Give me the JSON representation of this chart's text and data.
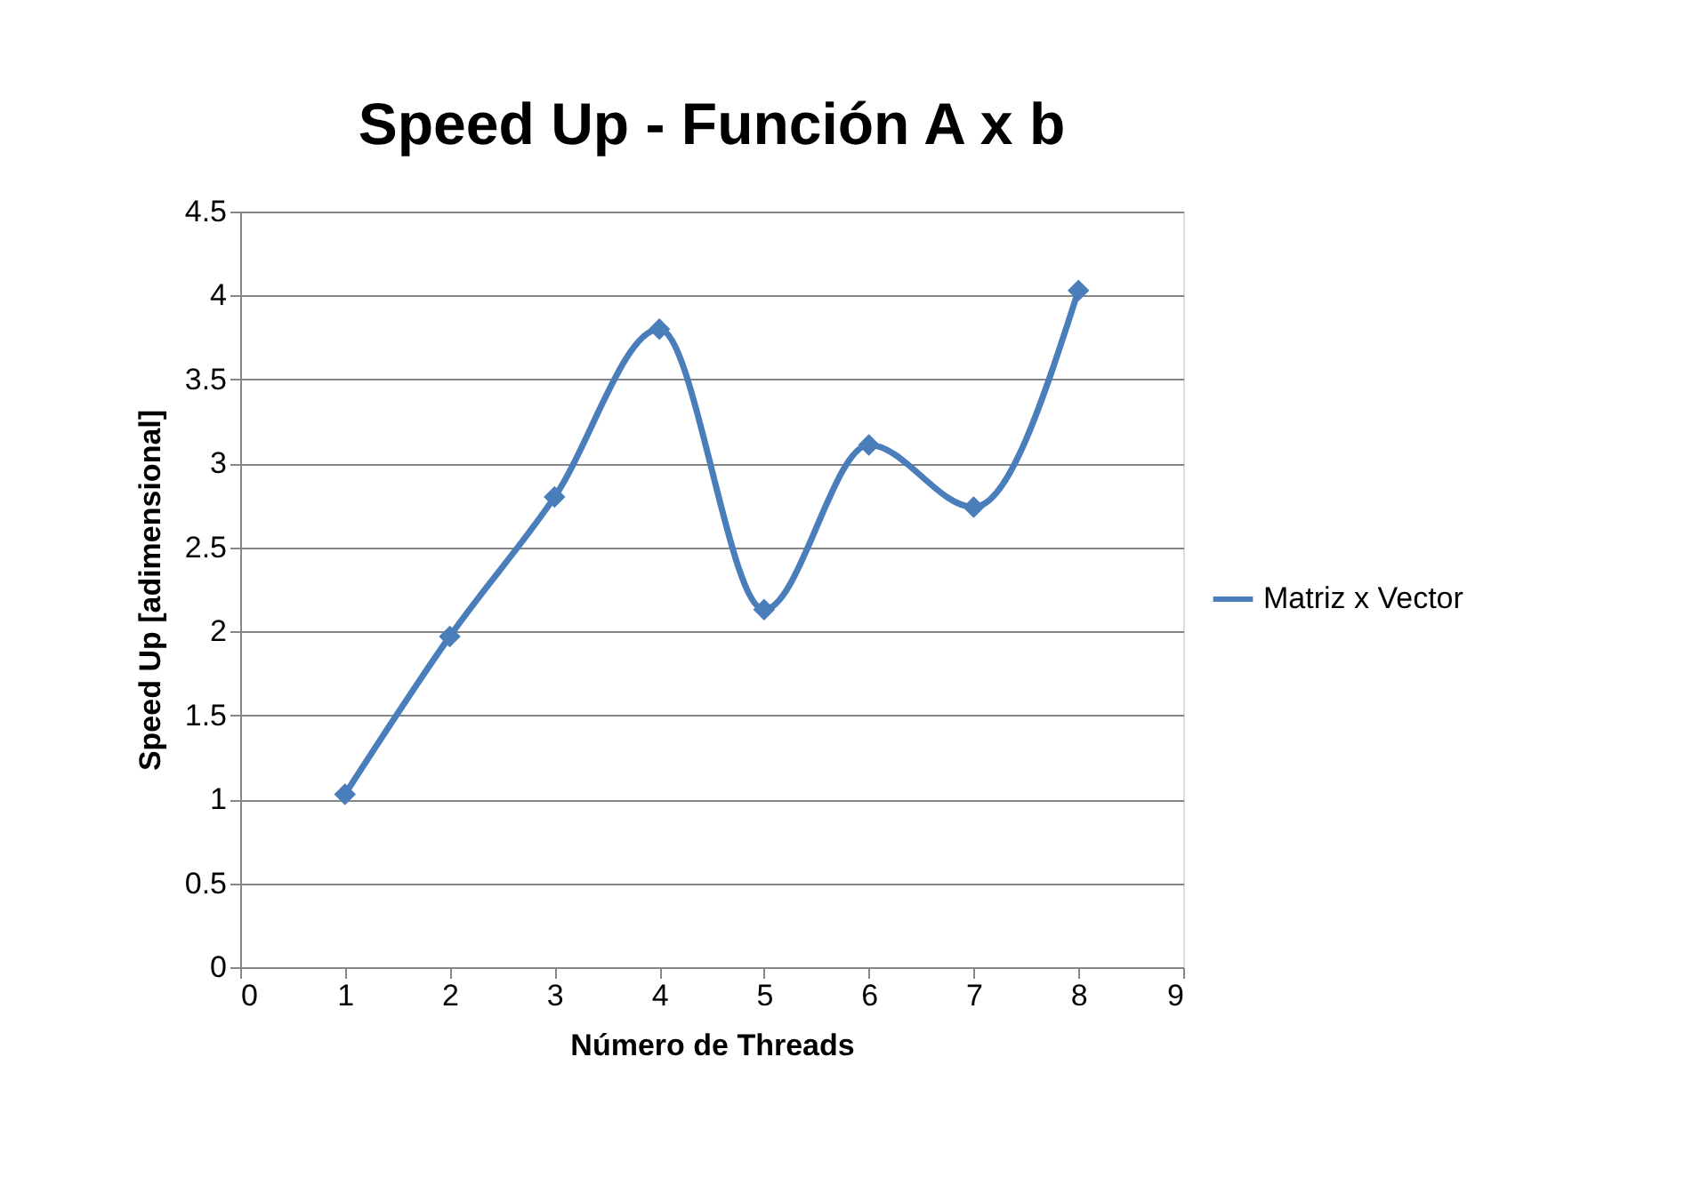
{
  "chart_data": {
    "type": "line",
    "title": "Speed Up - Función A x b",
    "xlabel": "Número de Threads",
    "ylabel": "Speed Up [adimensional]",
    "x": [
      1,
      2,
      3,
      4,
      5,
      6,
      7,
      8
    ],
    "series": [
      {
        "name": "Matriz x Vector",
        "color": "#4a7ebb",
        "values": [
          1.03,
          1.97,
          2.8,
          3.8,
          2.13,
          3.11,
          2.74,
          4.03
        ]
      }
    ],
    "xlim": [
      0,
      9
    ],
    "xticks": [
      0,
      1,
      2,
      3,
      4,
      5,
      6,
      7,
      8,
      9
    ],
    "ylim": [
      0,
      4.5
    ],
    "yticks": [
      0,
      0.5,
      1,
      1.5,
      2,
      2.5,
      3,
      3.5,
      4,
      4.5
    ],
    "grid": "y",
    "legend": "right",
    "marker": "diamond",
    "line_style": "solid"
  }
}
